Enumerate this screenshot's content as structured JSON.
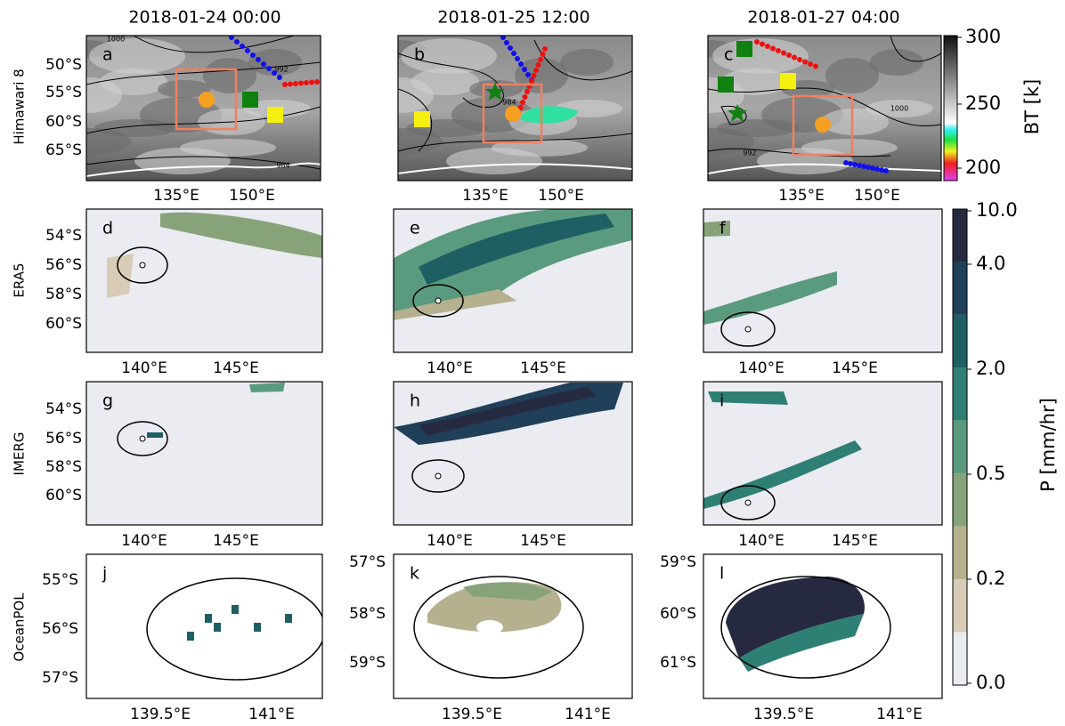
{
  "columns": [
    "2018-01-24 00:00",
    "2018-01-25 12:00",
    "2018-01-27 04:00"
  ],
  "rows": [
    "Himawari 8",
    "ERA5",
    "IMERG",
    "OceanPOL"
  ],
  "panels": [
    {
      "letter": "a",
      "yticks": [
        "50°S",
        "55°S",
        "60°S",
        "65°S"
      ],
      "xticks": [
        "135°E",
        "150°E"
      ],
      "contours": [
        "1000",
        "992",
        "984"
      ]
    },
    {
      "letter": "b",
      "xticks": [
        "135°E",
        "150°E"
      ],
      "contours": [
        "984"
      ]
    },
    {
      "letter": "c",
      "xticks": [
        "135°E",
        "150°E"
      ],
      "contours": [
        "1000",
        "992"
      ]
    },
    {
      "letter": "d",
      "yticks": [
        "54°S",
        "56°S",
        "58°S",
        "60°S"
      ],
      "xticks": [
        "140°E",
        "145°E"
      ]
    },
    {
      "letter": "e",
      "xticks": [
        "140°E",
        "145°E"
      ]
    },
    {
      "letter": "f",
      "xticks": [
        "140°E",
        "145°E"
      ]
    },
    {
      "letter": "g",
      "yticks": [
        "54°S",
        "56°S",
        "58°S",
        "60°S"
      ],
      "xticks": [
        "140°E",
        "145°E"
      ]
    },
    {
      "letter": "h",
      "xticks": [
        "140°E",
        "145°E"
      ]
    },
    {
      "letter": "i",
      "xticks": [
        "140°E",
        "145°E"
      ]
    },
    {
      "letter": "j",
      "yticks": [
        "55°S",
        "56°S",
        "57°S"
      ],
      "xticks": [
        "139.5°E",
        "141°E"
      ]
    },
    {
      "letter": "k",
      "yticks": [
        "57°S",
        "58°S",
        "59°S"
      ],
      "xticks": [
        "139.5°E",
        "141°E"
      ]
    },
    {
      "letter": "l",
      "yticks": [
        "59°S",
        "60°S",
        "61°S"
      ],
      "xticks": [
        "139.5°E",
        "141°E"
      ]
    }
  ],
  "colorbars": {
    "bt": {
      "label": "BT [k]",
      "ticks": [
        "300",
        "250",
        "200"
      ]
    },
    "p": {
      "label": "P [mm/hr]",
      "ticks": [
        "10.0",
        "4.0",
        "2.0",
        "0.5",
        "0.2",
        "0.0"
      ]
    }
  }
}
